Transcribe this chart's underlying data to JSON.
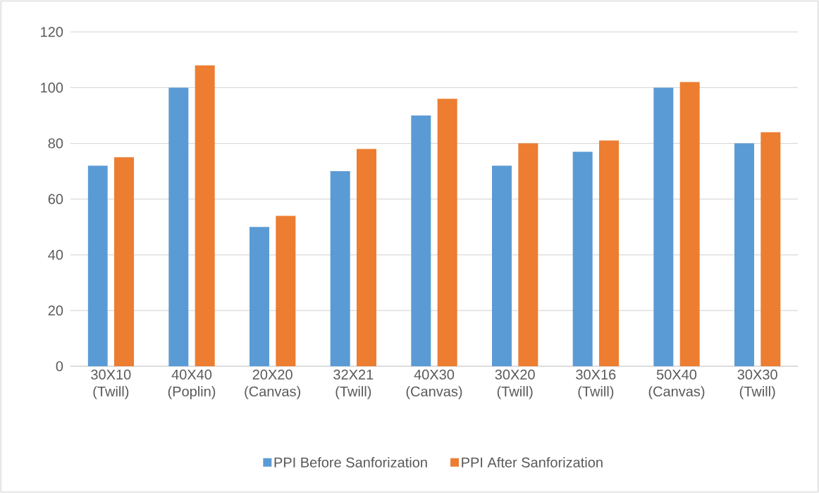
{
  "chart_data": {
    "type": "bar",
    "categories": [
      "30X10 (Twill)",
      "40X40 (Poplin)",
      "20X20 (Canvas)",
      "32X21 (Twill)",
      "40X30 (Canvas)",
      "30X20 (Twill)",
      "30X16 (Twill)",
      "50X40 (Canvas)",
      "30X30 (Twill)"
    ],
    "series": [
      {
        "name": "PPI Before Sanforization",
        "color": "#5b9bd5",
        "values": [
          72,
          100,
          50,
          70,
          90,
          72,
          77,
          100,
          80
        ]
      },
      {
        "name": "PPI After Sanforization",
        "color": "#ed7d31",
        "values": [
          75,
          108,
          54,
          78,
          96,
          80,
          81,
          102,
          84
        ]
      }
    ],
    "ylim": [
      0,
      120
    ],
    "yticks": [
      0,
      20,
      40,
      60,
      80,
      100,
      120
    ],
    "grid": "y",
    "legend": "bottom"
  }
}
